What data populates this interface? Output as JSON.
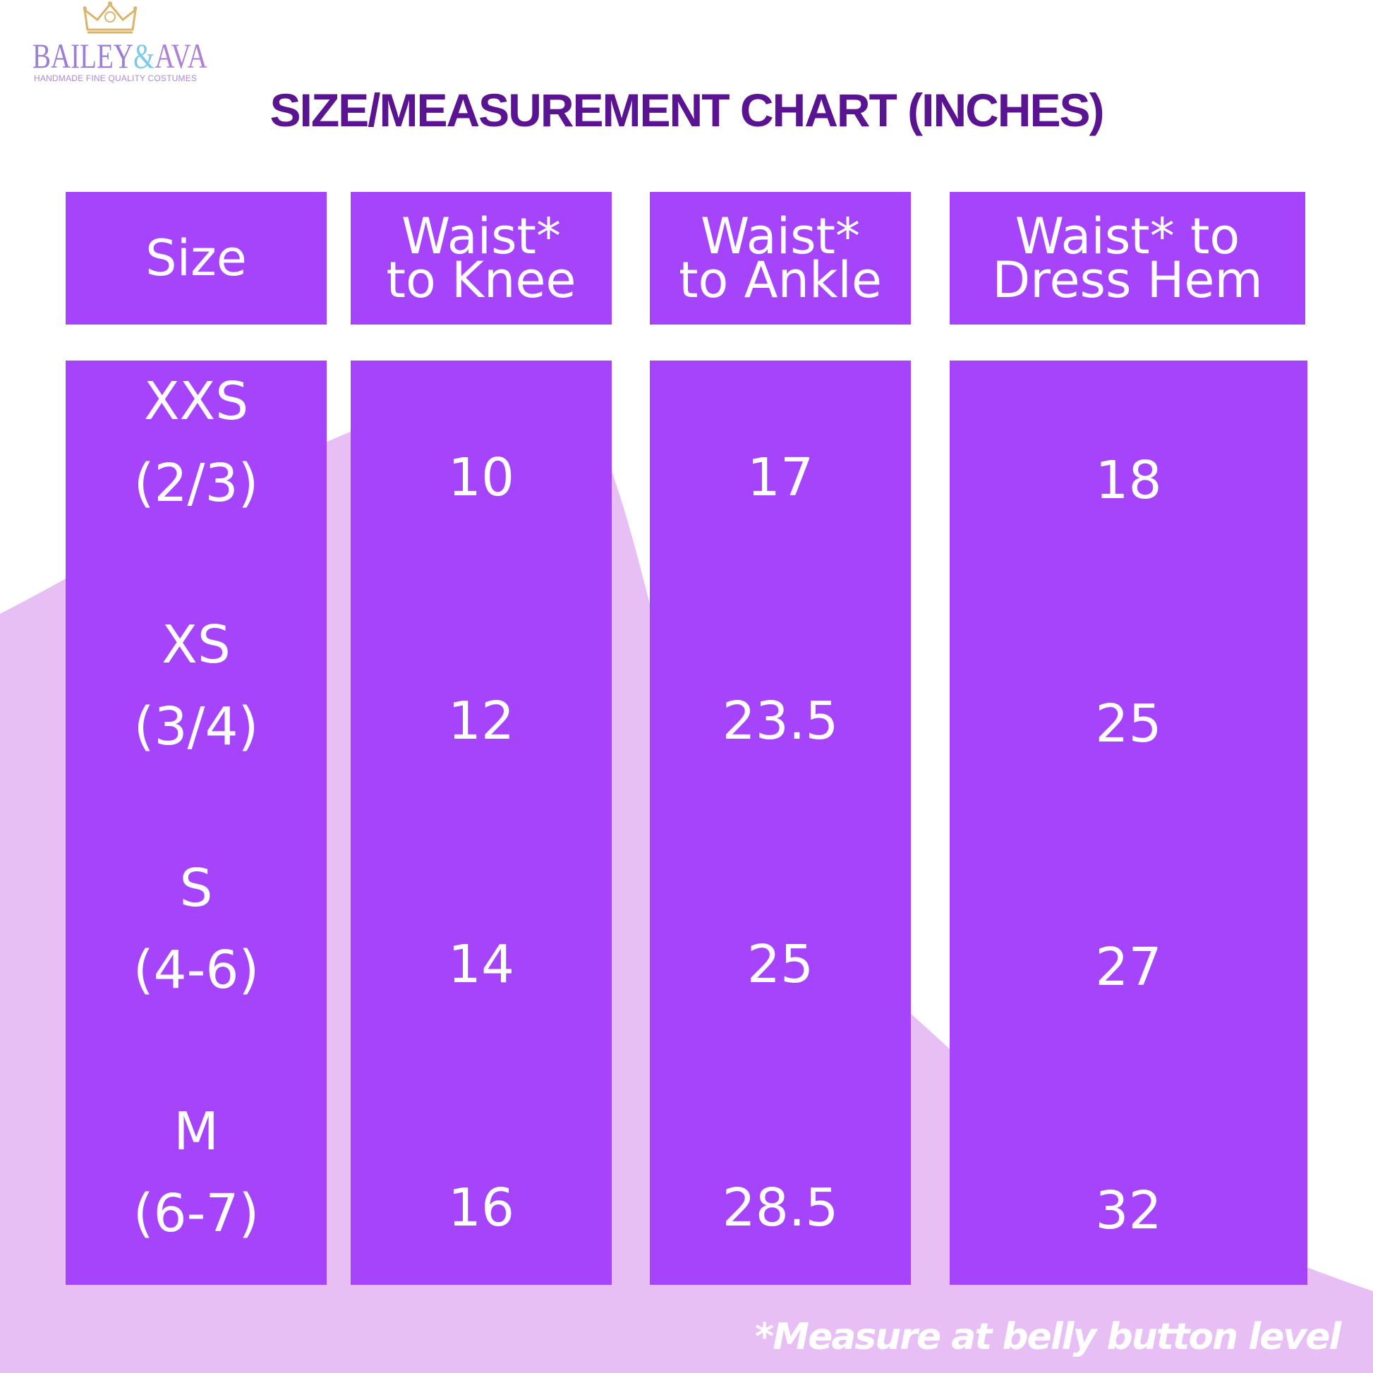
{
  "brand": {
    "name_part1": "BAILEY",
    "name_part2": "&",
    "name_part3": "AVA",
    "tagline": "HANDMADE FINE QUALITY COSTUMES",
    "crown_icon": "crown-icon",
    "colors": {
      "purple": "#9b7fd6",
      "blue": "#7cc9e8",
      "gold": "#d9b46a"
    }
  },
  "title": "SIZE/MEASUREMENT CHART (INCHES)",
  "headers": [
    {
      "line1": "Size",
      "line2": ""
    },
    {
      "line1": "Waist*",
      "line2": "to Knee"
    },
    {
      "line1": "Waist*",
      "line2": "to Ankle"
    },
    {
      "line1": "Waist* to",
      "line2": "Dress Hem"
    }
  ],
  "sizes": [
    {
      "label": "XXS",
      "range": "(2/3)"
    },
    {
      "label": "XS",
      "range": "(3/4)"
    },
    {
      "label": "S",
      "range": "(4-6)"
    },
    {
      "label": "M",
      "range": "(6-7)"
    }
  ],
  "knee": [
    "10",
    "12",
    "14",
    "16"
  ],
  "ankle": [
    "17",
    "23.5",
    "25",
    "28.5"
  ],
  "hem": [
    "18",
    "25",
    "27",
    "32"
  ],
  "footnote": "*Measure at belly button level",
  "colors": {
    "cell": "#a544fb",
    "title": "#5a1491",
    "wave": "#e8bff5"
  }
}
